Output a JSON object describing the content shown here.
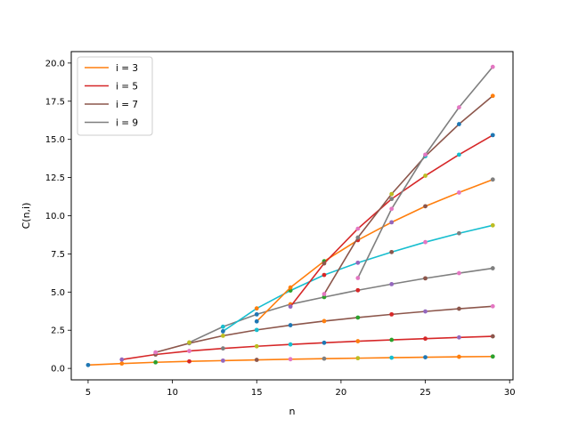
{
  "chart_data": {
    "type": "line",
    "xlabel": "n",
    "ylabel": "C(n,i)",
    "xlim": [
      4.0,
      30.2
    ],
    "ylim": [
      -0.75,
      20.75
    ],
    "xticks": [
      5,
      10,
      15,
      20,
      25,
      30
    ],
    "xtick_labels": [
      "5",
      "10",
      "15",
      "20",
      "25",
      "30"
    ],
    "yticks": [
      0,
      2.5,
      5,
      7.5,
      10,
      12.5,
      15,
      17.5,
      20
    ],
    "ytick_labels": [
      "0.0",
      "2.5",
      "5.0",
      "7.5",
      "10.0",
      "12.5",
      "15.0",
      "17.5",
      "20.0"
    ],
    "grid": false,
    "legend": {
      "position": "top-left",
      "entries": [
        {
          "label": "i = 3",
          "color": "#ff7f0e"
        },
        {
          "label": "i = 5",
          "color": "#d62728"
        },
        {
          "label": "i = 7",
          "color": "#8c564b"
        },
        {
          "label": "i = 9",
          "color": "#7f7f7f"
        }
      ]
    },
    "series": [
      {
        "color": "#ff7f0e",
        "marker_colors": [
          "#1f77b4",
          "#ff7f0e",
          "#2ca02c",
          "#d62728",
          "#9467bd",
          "#8c564b",
          "#e377c2",
          "#7f7f7f",
          "#bcbd22",
          "#17becf",
          "#1f77b4",
          "#ff7f0e",
          "#2ca02c"
        ],
        "x": [
          5,
          7,
          9,
          11,
          13,
          15,
          17,
          19,
          21,
          23,
          25,
          27,
          29
        ],
        "y": [
          0.22,
          0.32,
          0.4,
          0.46,
          0.51,
          0.56,
          0.6,
          0.64,
          0.67,
          0.7,
          0.73,
          0.76,
          0.78
        ]
      },
      {
        "color": "#d62728",
        "marker_colors": [
          "#9467bd",
          "#8c564b",
          "#e377c2",
          "#7f7f7f",
          "#bcbd22",
          "#17becf",
          "#1f77b4",
          "#ff7f0e",
          "#2ca02c",
          "#d62728",
          "#9467bd",
          "#8c564b"
        ],
        "x": [
          7,
          9,
          11,
          13,
          15,
          17,
          19,
          21,
          23,
          25,
          27,
          29
        ],
        "y": [
          0.58,
          0.91,
          1.14,
          1.31,
          1.45,
          1.57,
          1.68,
          1.78,
          1.87,
          1.95,
          2.03,
          2.1
        ]
      },
      {
        "color": "#8c564b",
        "marker_colors": [
          "#e377c2",
          "#7f7f7f",
          "#bcbd22",
          "#17becf",
          "#1f77b4",
          "#ff7f0e",
          "#2ca02c",
          "#d62728",
          "#9467bd",
          "#8c564b",
          "#e377c2"
        ],
        "x": [
          9,
          11,
          13,
          15,
          17,
          19,
          21,
          23,
          25,
          27,
          29
        ],
        "y": [
          1.05,
          1.65,
          2.14,
          2.52,
          2.83,
          3.1,
          3.33,
          3.54,
          3.73,
          3.91,
          4.07
        ]
      },
      {
        "color": "#7f7f7f",
        "marker_colors": [
          "#bcbd22",
          "#17becf",
          "#1f77b4",
          "#ff7f0e",
          "#2ca02c",
          "#d62728",
          "#9467bd",
          "#8c564b",
          "#e377c2",
          "#7f7f7f"
        ],
        "x": [
          11,
          13,
          15,
          17,
          19,
          21,
          23,
          25,
          27,
          29
        ],
        "y": [
          1.7,
          2.73,
          3.54,
          4.2,
          4.67,
          5.12,
          5.52,
          5.9,
          6.24,
          6.56
        ]
      },
      {
        "color": "#17becf",
        "marker_colors": [
          "#1f77b4",
          "#ff7f0e",
          "#2ca02c",
          "#d62728",
          "#9467bd",
          "#8c564b",
          "#e377c2",
          "#7f7f7f",
          "#bcbd22"
        ],
        "x": [
          13,
          15,
          17,
          19,
          21,
          23,
          25,
          27,
          29
        ],
        "y": [
          2.43,
          3.93,
          5.1,
          6.12,
          6.92,
          7.62,
          8.27,
          8.85,
          9.37
        ]
      },
      {
        "color": "#ff7f0e",
        "marker_colors": [
          "#1f77b4",
          "#ff7f0e",
          "#2ca02c",
          "#d62728",
          "#9467bd",
          "#8c564b",
          "#e377c2",
          "#7f7f7f"
        ],
        "x": [
          15,
          17,
          19,
          21,
          23,
          25,
          27,
          29
        ],
        "y": [
          3.08,
          5.3,
          7.02,
          8.4,
          9.57,
          10.62,
          11.52,
          12.37
        ]
      },
      {
        "color": "#d62728",
        "marker_colors": [
          "#9467bd",
          "#8c564b",
          "#e377c2",
          "#7f7f7f",
          "#bcbd22",
          "#17becf",
          "#1f77b4"
        ],
        "x": [
          17,
          19,
          21,
          23,
          25,
          27,
          29
        ],
        "y": [
          4.05,
          6.88,
          9.15,
          11.1,
          12.62,
          14.0,
          15.28
        ]
      },
      {
        "color": "#8c564b",
        "marker_colors": [
          "#e377c2",
          "#7f7f7f",
          "#bcbd22",
          "#17becf",
          "#1f77b4",
          "#ff7f0e"
        ],
        "x": [
          19,
          21,
          23,
          25,
          27,
          29
        ],
        "y": [
          4.87,
          8.57,
          11.42,
          13.9,
          16.0,
          17.85
        ]
      },
      {
        "color": "#7f7f7f",
        "marker_colors": [
          "#e377c2",
          "#e377c2",
          "#e377c2",
          "#e377c2",
          "#e377c2"
        ],
        "x": [
          21,
          23,
          25,
          27,
          29
        ],
        "y": [
          5.92,
          10.45,
          14.0,
          17.1,
          19.75
        ]
      }
    ]
  }
}
